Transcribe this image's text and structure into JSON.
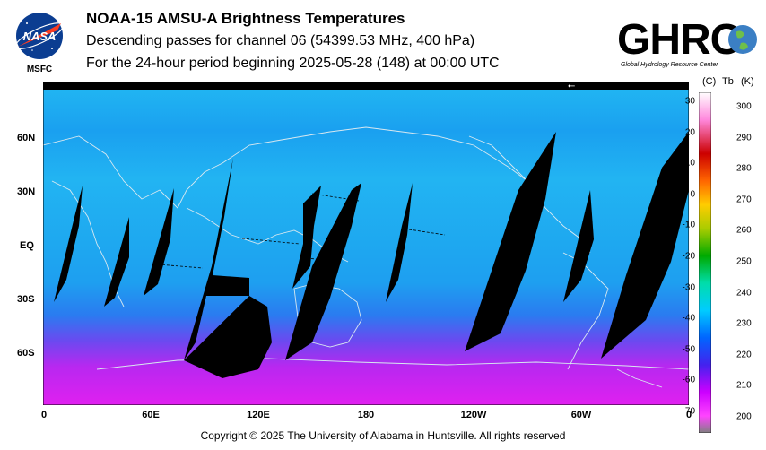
{
  "header": {
    "title": "NOAA-15 AMSU-A Brightness Temperatures",
    "subtitle": "Descending passes for channel 06 (54399.53 MHz, 400 hPa)",
    "period": "For the 24-hour period beginning 2025-05-28 (148) at 00:00 UTC"
  },
  "logos": {
    "nasa_text": "NASA",
    "nasa_sub": "MSFC",
    "ghrc_text": "GHRC",
    "ghrc_sub": "Global Hydrology Resource Center"
  },
  "map": {
    "lat_labels": [
      "60N",
      "30N",
      "EQ",
      "30S",
      "60S"
    ],
    "lon_labels": [
      "0",
      "60E",
      "120E",
      "180",
      "120W",
      "60W",
      "0"
    ],
    "arrow": "←"
  },
  "colorbar": {
    "header_c": "(C)",
    "header_tb": "Tb",
    "header_k": "(K)",
    "celsius": [
      "30",
      "20",
      "10",
      "0",
      "-10",
      "-20",
      "-30",
      "-40",
      "-50",
      "-60",
      "-70"
    ],
    "kelvin": [
      "300",
      "290",
      "280",
      "270",
      "260",
      "250",
      "240",
      "230",
      "220",
      "210",
      "200"
    ],
    "colors": [
      "#ffffff",
      "#ff66cc",
      "#cc0000",
      "#ff6600",
      "#ffcc00",
      "#aacc00",
      "#00aa00",
      "#00ddaa",
      "#00ccff",
      "#0044ff",
      "#cc00ff",
      "#808080"
    ]
  },
  "footer": {
    "copyright": "Copyright © 2025 The University of Alabama in Huntsville.  All rights reserved"
  }
}
